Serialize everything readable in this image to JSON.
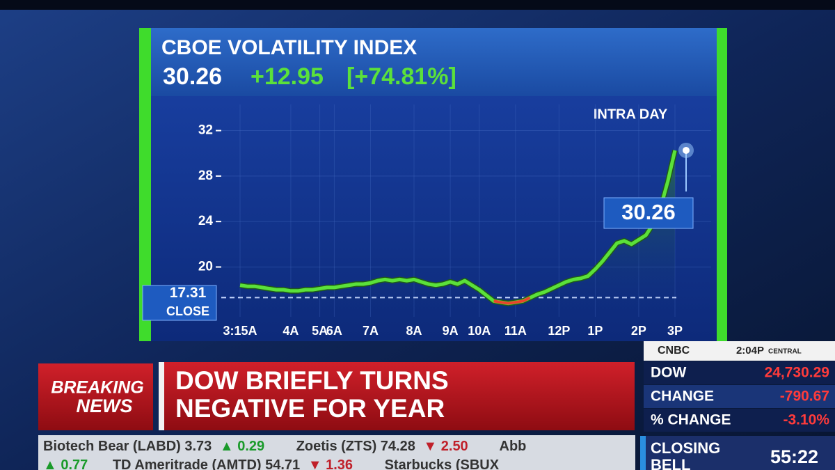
{
  "header": {
    "title": "CBOE VOLATILITY INDEX",
    "last": "30.26",
    "change": "+12.95",
    "change_pct": "[+74.81%]"
  },
  "chart_data": {
    "type": "line",
    "annotation": "INTRA DAY",
    "close": 17.31,
    "close_label": "CLOSE",
    "color": "#5be13a",
    "below_close_color": "#e8452c",
    "categories": [
      "3:15A",
      null,
      null,
      null,
      null,
      null,
      null,
      "4A",
      null,
      null,
      null,
      "5A",
      null,
      "6A",
      null,
      null,
      null,
      null,
      "7A",
      null,
      null,
      null,
      null,
      null,
      "8A",
      null,
      null,
      null,
      null,
      "9A",
      null,
      null,
      null,
      "10A",
      null,
      null,
      null,
      null,
      "11A",
      null,
      null,
      null,
      null,
      null,
      "12P",
      null,
      null,
      null,
      null,
      "1P",
      null,
      null,
      null,
      null,
      null,
      "2P",
      null,
      null,
      null,
      null,
      "3P"
    ],
    "values": [
      18.4,
      18.3,
      18.3,
      18.2,
      18.1,
      18.0,
      18.0,
      17.9,
      17.9,
      18.0,
      18.0,
      18.1,
      18.2,
      18.2,
      18.3,
      18.4,
      18.5,
      18.5,
      18.6,
      18.8,
      18.9,
      18.8,
      18.9,
      18.8,
      18.9,
      18.7,
      18.5,
      18.4,
      18.5,
      18.7,
      18.5,
      18.8,
      18.4,
      18.0,
      17.5,
      17.0,
      16.9,
      16.8,
      16.9,
      17.0,
      17.3,
      17.6,
      17.8,
      18.1,
      18.4,
      18.7,
      18.9,
      19.0,
      19.2,
      19.8,
      20.5,
      21.3,
      22.1,
      22.3,
      22.0,
      22.4,
      22.8,
      23.8,
      25.2,
      27.5,
      30.26
    ],
    "ylim": [
      14.7,
      34.3
    ],
    "yticks": [
      20,
      24,
      28,
      32
    ],
    "grid": true
  },
  "breaking": {
    "line1": "BREAKING",
    "line2": "NEWS"
  },
  "headline": {
    "line1": "DOW BRIEFLY TURNS",
    "line2": "NEGATIVE FOR YEAR"
  },
  "ticker": {
    "row1": [
      "Biotech Bear (LABD) 3.73",
      "▲ 0.29",
      "Zoetis (ZTS) 74.28",
      "▼ 2.50",
      "Abb"
    ],
    "row2": [
      "▲ 0.77",
      "TD Ameritrade (AMTD) 54.71",
      "▼ 1.36",
      "Starbucks (SBUX"
    ]
  },
  "market": {
    "logo": "CNBC",
    "time": "2:04P",
    "zone": "CENTRAL",
    "rows": [
      [
        "DOW",
        "24,730.29"
      ],
      [
        "CHANGE",
        "-790.67"
      ],
      [
        "% CHANGE",
        "-3.10%"
      ]
    ]
  },
  "closing_bell": {
    "line1": "CLOSING",
    "line2": "BELL",
    "countdown": "55:22"
  }
}
